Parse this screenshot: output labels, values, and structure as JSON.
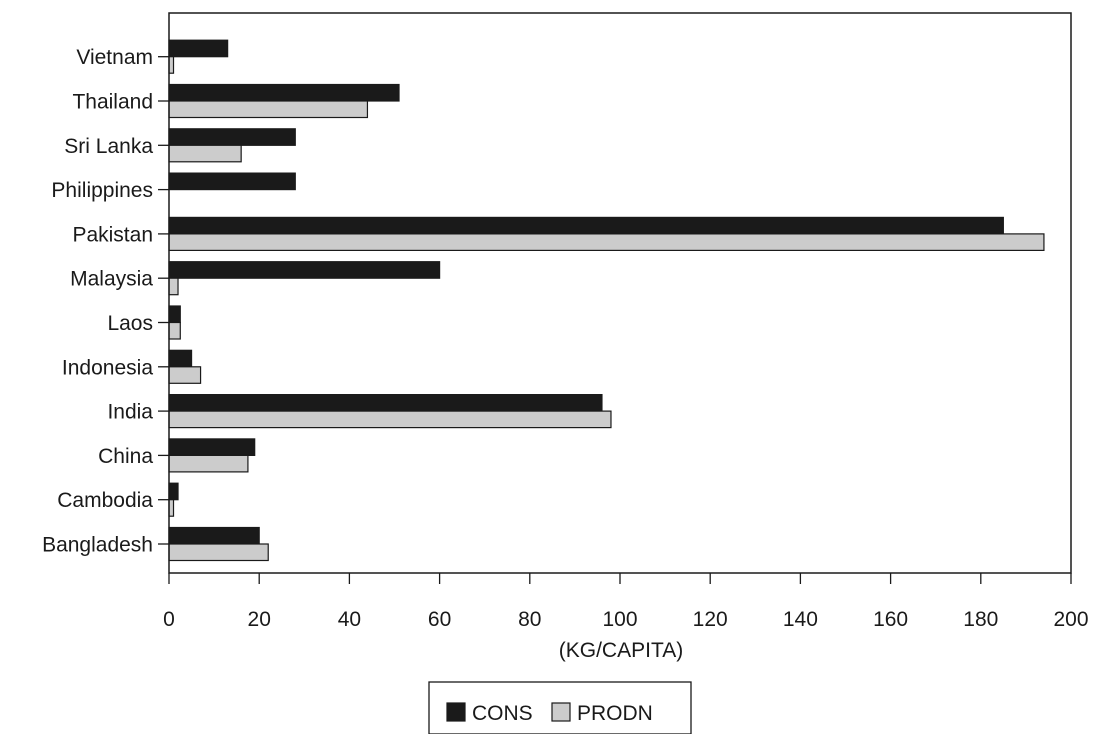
{
  "chart_data": {
    "type": "bar",
    "orientation": "horizontal",
    "categories": [
      "Bangladesh",
      "Cambodia",
      "China",
      "India",
      "Indonesia",
      "Laos",
      "Malaysia",
      "Pakistan",
      "Philippines",
      "Sri Lanka",
      "Thailand",
      "Vietnam"
    ],
    "series": [
      {
        "name": "CONS",
        "color": "#1a1a1a",
        "values": [
          20,
          2,
          19,
          96,
          5,
          2.5,
          60,
          185,
          28,
          28,
          51,
          13
        ]
      },
      {
        "name": "PRODN",
        "color": "#cccccc",
        "values": [
          22,
          1,
          17.5,
          98,
          7,
          2.5,
          2,
          194,
          0,
          16,
          44,
          1
        ]
      }
    ],
    "xlabel": "(KG/CAPITA)",
    "ylabel": "",
    "title": "",
    "xlim": [
      0,
      200
    ],
    "xticks": [
      "0",
      "20",
      "40",
      "60",
      "80",
      "100",
      "120",
      "140",
      "160",
      "180",
      "200"
    ],
    "grid": false,
    "legend_position": "bottom-center"
  }
}
